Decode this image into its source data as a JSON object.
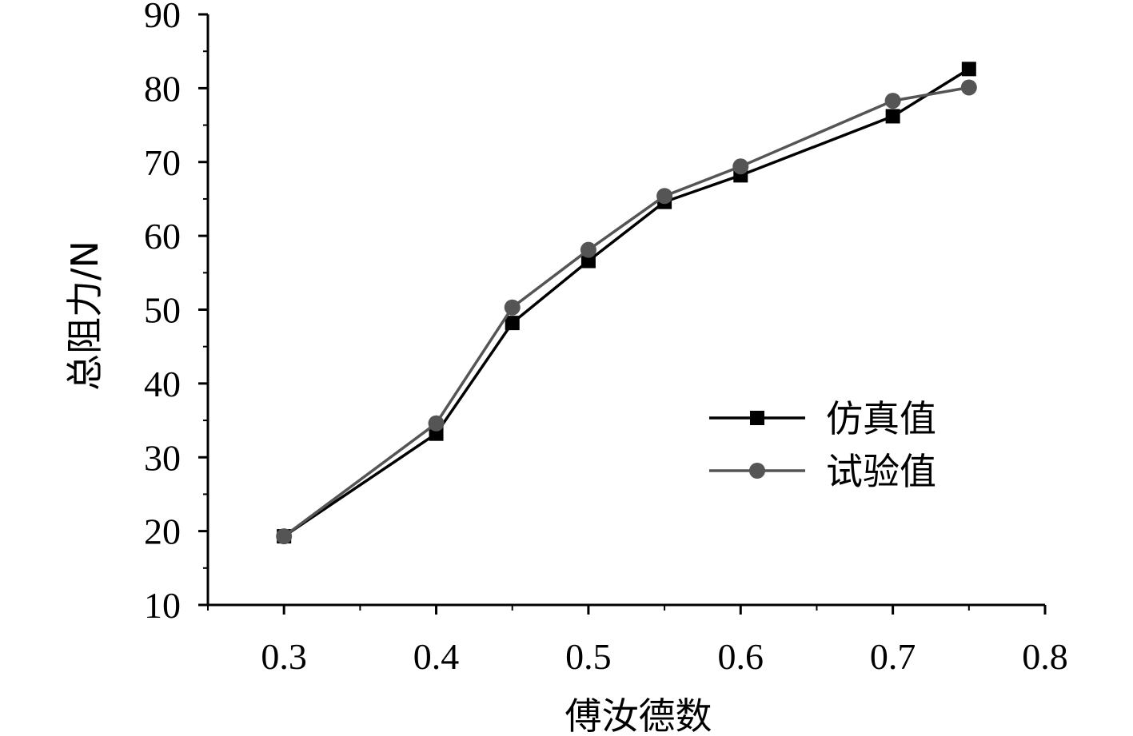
{
  "chart_data": {
    "type": "line",
    "xlabel": "傅汝德数",
    "ylabel": "总阻力/N",
    "xlim": [
      0.25,
      0.8
    ],
    "ylim": [
      10,
      90
    ],
    "x_ticks": [
      0.3,
      0.4,
      0.5,
      0.6,
      0.7,
      0.8
    ],
    "x_tick_labels": [
      "0.3",
      "0.4",
      "0.5",
      "0.6",
      "0.7",
      "0.8"
    ],
    "y_ticks": [
      10,
      20,
      30,
      40,
      50,
      60,
      70,
      80,
      90
    ],
    "y_tick_labels": [
      "10",
      "20",
      "30",
      "40",
      "50",
      "60",
      "70",
      "80",
      "90"
    ],
    "grid": false,
    "legend_position": "center-right",
    "series": [
      {
        "name": "仿真值",
        "color": "#000000",
        "marker": "square",
        "x": [
          0.3,
          0.4,
          0.45,
          0.5,
          0.55,
          0.6,
          0.7,
          0.75
        ],
        "y": [
          19.3,
          33.2,
          48.2,
          56.6,
          64.6,
          68.2,
          76.2,
          82.6
        ]
      },
      {
        "name": "试验值",
        "color": "#555555",
        "marker": "circle",
        "x": [
          0.3,
          0.4,
          0.45,
          0.5,
          0.55,
          0.6,
          0.7,
          0.75
        ],
        "y": [
          19.3,
          34.6,
          50.3,
          58.1,
          65.4,
          69.4,
          78.3,
          80.1
        ]
      }
    ]
  }
}
